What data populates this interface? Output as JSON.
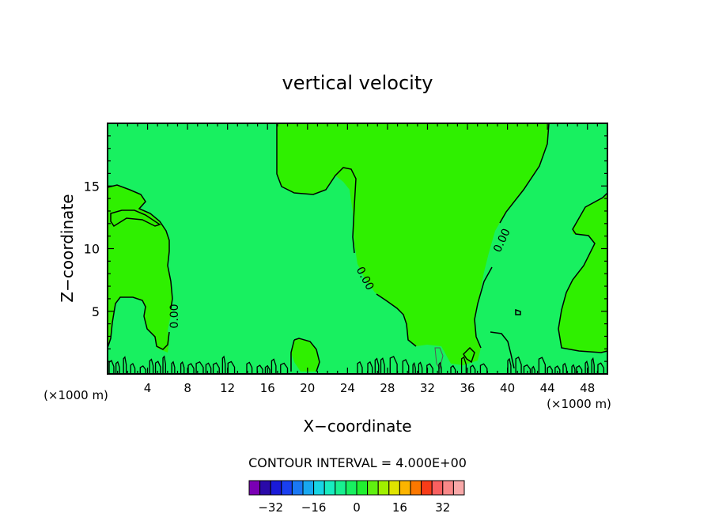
{
  "chart_data": {
    "type": "contour",
    "title": "vertical velocity",
    "xlabel": "X−coordinate",
    "ylabel": "Z−coordinate",
    "x_unit_left": "(×1000 m)",
    "x_unit_right": "(×1000 m)",
    "xlim": [
      0,
      50
    ],
    "ylim": [
      0,
      20
    ],
    "x_ticks": [
      4,
      8,
      12,
      16,
      20,
      24,
      28,
      32,
      36,
      40,
      44,
      48
    ],
    "y_ticks": [
      5,
      10,
      15
    ],
    "contour_labels": [
      "0.00",
      "0.00",
      "0.00"
    ],
    "contour_interval_label": "CONTOUR INTERVAL = 4.000E+00",
    "colorbar": {
      "tick_labels": [
        "−32",
        "−16",
        "0",
        "16",
        "32"
      ],
      "tick_values": [
        -32,
        -16,
        0,
        16,
        32
      ],
      "colors": [
        "#7a00b4",
        "#2a0aa8",
        "#1a1ad8",
        "#1a40f0",
        "#1a78f4",
        "#18a8f0",
        "#18d4e4",
        "#18ecc0",
        "#18f090",
        "#18f060",
        "#20f030",
        "#60f010",
        "#a0f000",
        "#e0e400",
        "#fcb400",
        "#fc7800",
        "#f83c18",
        "#f86060",
        "#f88888",
        "#f8a8a8"
      ]
    },
    "fill_colors": {
      "zero_to_plus4": "#2ff000",
      "minus4_to_zero": "#18f060"
    }
  }
}
